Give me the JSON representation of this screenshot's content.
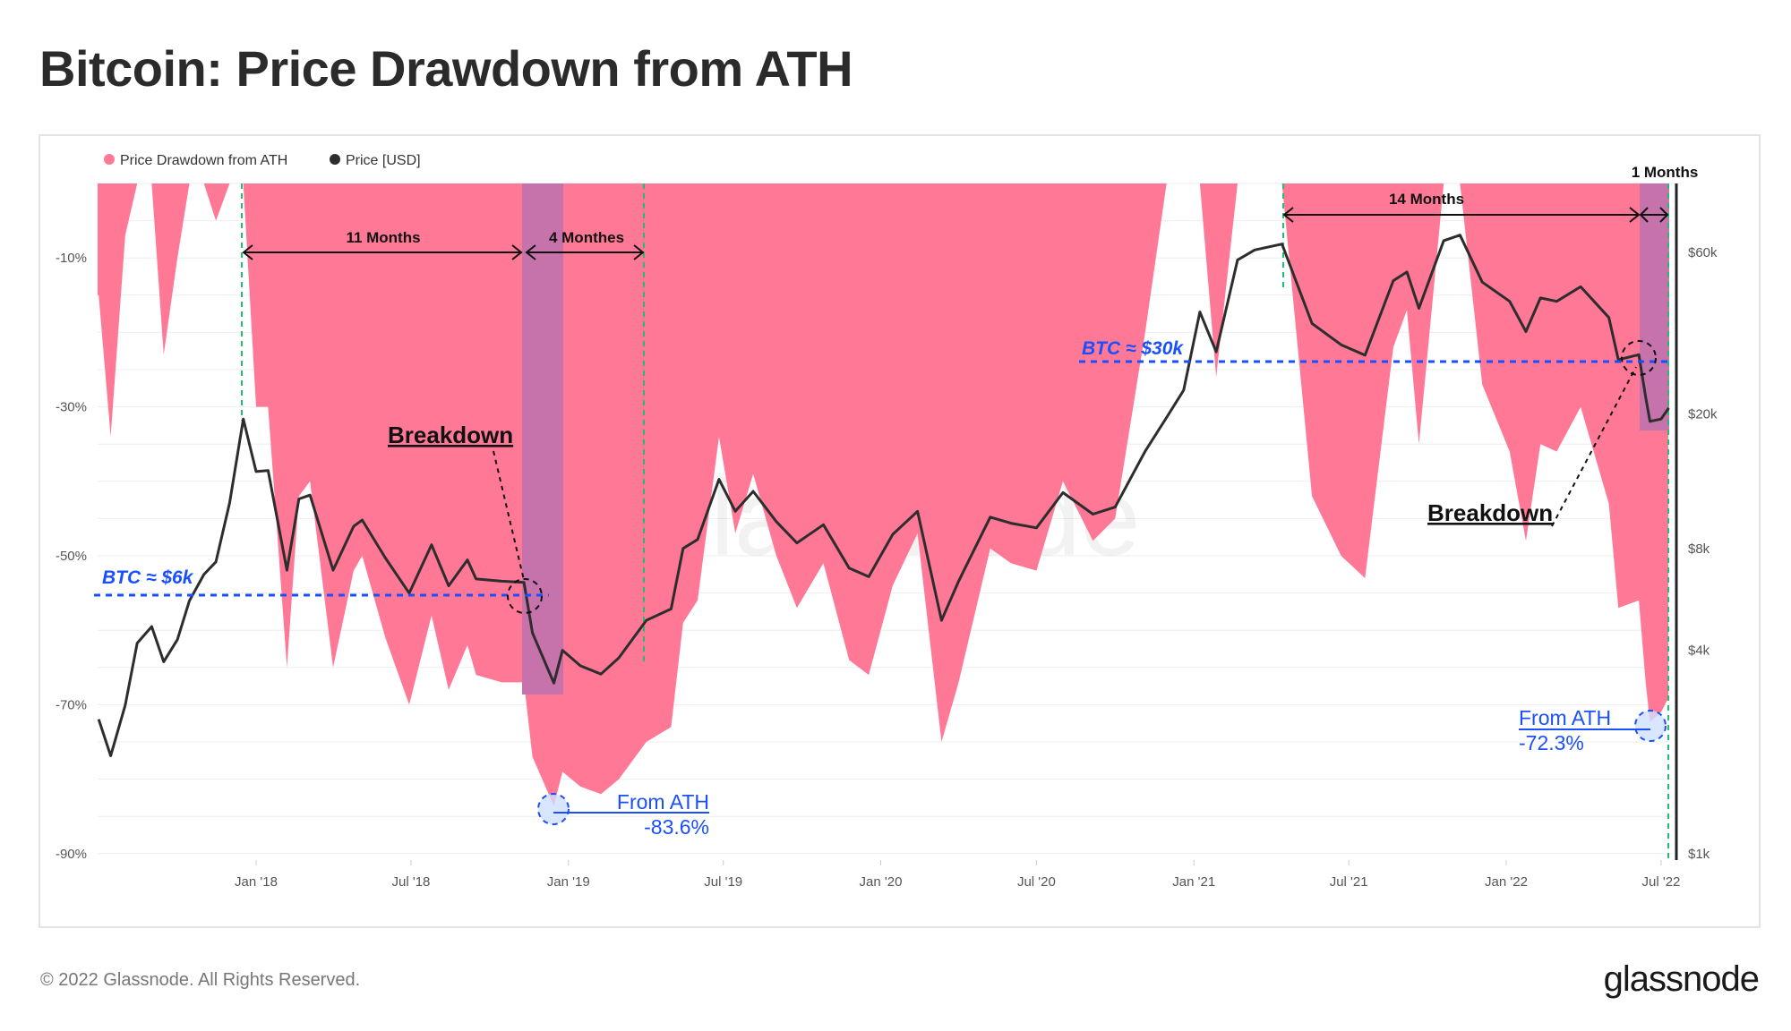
{
  "title": "Bitcoin: Price Drawdown from ATH",
  "footer": {
    "copyright": "© 2022 Glassnode. All Rights Reserved.",
    "logo": "glassnode",
    "watermark": "glassnode"
  },
  "colors": {
    "drawdown": "#ff7896",
    "price": "#2d2d2d",
    "highlight": "#c573aa",
    "annotation_blue": "#1a4fff",
    "marker_green": "#1fbf6f"
  },
  "chart_data": {
    "type": "area+line",
    "legend": [
      {
        "label": "Price Drawdown from ATH",
        "color": "#ff7896"
      },
      {
        "label": "Price [USD]",
        "color": "#2d2d2d"
      }
    ],
    "legend_position": "top-left",
    "grid": true,
    "x_ticks": [
      "Jan '18",
      "Jul '18",
      "Jan '19",
      "Jul '19",
      "Jan '20",
      "Jul '20",
      "Jan '21",
      "Jul '21",
      "Jan '22",
      "Jul '22"
    ],
    "x_tick_dates": [
      "2018-01-01",
      "2018-07-01",
      "2019-01-01",
      "2019-07-01",
      "2020-01-01",
      "2020-07-01",
      "2021-01-01",
      "2021-07-01",
      "2022-01-01",
      "2022-07-01"
    ],
    "xlim": [
      "2017-07-01",
      "2022-07-13"
    ],
    "y_left": {
      "ticks": [
        "-10%",
        "-30%",
        "-50%",
        "-70%",
        "-90%"
      ],
      "tick_values": [
        -10,
        -30,
        -50,
        -70,
        -90
      ],
      "range": [
        -90,
        0
      ]
    },
    "y_right": {
      "scale": "log",
      "ticks": [
        "$60k",
        "$20k",
        "$8k",
        "$4k",
        "$1k"
      ],
      "tick_values": [
        60000,
        20000,
        8000,
        4000,
        1000
      ]
    },
    "series": [
      {
        "name": "Price Drawdown from ATH",
        "unit": "%",
        "points": [
          [
            "2017-07-01",
            -15
          ],
          [
            "2017-07-15",
            -34
          ],
          [
            "2017-08-01",
            -7
          ],
          [
            "2017-08-15",
            0
          ],
          [
            "2017-09-01",
            0
          ],
          [
            "2017-09-15",
            -23
          ],
          [
            "2017-10-01",
            -10
          ],
          [
            "2017-10-15",
            0
          ],
          [
            "2017-11-01",
            0
          ],
          [
            "2017-11-15",
            -5
          ],
          [
            "2017-12-01",
            0
          ],
          [
            "2017-12-17",
            0
          ],
          [
            "2018-01-01",
            -30
          ],
          [
            "2018-01-15",
            -30
          ],
          [
            "2018-02-06",
            -65
          ],
          [
            "2018-02-20",
            -42
          ],
          [
            "2018-03-05",
            -40
          ],
          [
            "2018-04-01",
            -65
          ],
          [
            "2018-04-25",
            -52
          ],
          [
            "2018-05-05",
            -50
          ],
          [
            "2018-06-01",
            -61
          ],
          [
            "2018-06-29",
            -70
          ],
          [
            "2018-07-25",
            -58
          ],
          [
            "2018-08-14",
            -68
          ],
          [
            "2018-09-05",
            -62
          ],
          [
            "2018-09-15",
            -66
          ],
          [
            "2018-10-15",
            -67
          ],
          [
            "2018-11-10",
            -67
          ],
          [
            "2018-11-20",
            -77
          ],
          [
            "2018-12-15",
            -83.6
          ],
          [
            "2018-12-25",
            -79
          ],
          [
            "2019-01-15",
            -81
          ],
          [
            "2019-02-08",
            -82
          ],
          [
            "2019-03-01",
            -80
          ],
          [
            "2019-04-02",
            -75
          ],
          [
            "2019-05-01",
            -73
          ],
          [
            "2019-05-15",
            -59
          ],
          [
            "2019-06-01",
            -56
          ],
          [
            "2019-06-26",
            -34
          ],
          [
            "2019-07-15",
            -47
          ],
          [
            "2019-08-05",
            -39
          ],
          [
            "2019-09-01",
            -50
          ],
          [
            "2019-09-25",
            -57
          ],
          [
            "2019-10-26",
            -51
          ],
          [
            "2019-11-25",
            -64
          ],
          [
            "2019-12-18",
            -66
          ],
          [
            "2020-01-15",
            -54
          ],
          [
            "2020-02-13",
            -47
          ],
          [
            "2020-03-12",
            -75
          ],
          [
            "2020-04-01",
            -67
          ],
          [
            "2020-05-08",
            -49
          ],
          [
            "2020-06-01",
            -51
          ],
          [
            "2020-07-01",
            -52
          ],
          [
            "2020-08-01",
            -40
          ],
          [
            "2020-09-05",
            -48
          ],
          [
            "2020-10-01",
            -45
          ],
          [
            "2020-11-05",
            -20
          ],
          [
            "2020-11-30",
            0
          ],
          [
            "2020-12-20",
            0
          ],
          [
            "2021-01-08",
            0
          ],
          [
            "2021-01-27",
            -26
          ],
          [
            "2021-02-21",
            0
          ],
          [
            "2021-03-13",
            0
          ],
          [
            "2021-04-14",
            0
          ],
          [
            "2021-05-19",
            -42
          ],
          [
            "2021-06-22",
            -50
          ],
          [
            "2021-07-20",
            -53
          ],
          [
            "2021-08-22",
            -22
          ],
          [
            "2021-09-07",
            -17
          ],
          [
            "2021-09-21",
            -35
          ],
          [
            "2021-10-20",
            0
          ],
          [
            "2021-11-08",
            0
          ],
          [
            "2021-12-04",
            -27
          ],
          [
            "2022-01-05",
            -36
          ],
          [
            "2022-01-24",
            -48
          ],
          [
            "2022-02-10",
            -35
          ],
          [
            "2022-03-01",
            -36
          ],
          [
            "2022-03-29",
            -30
          ],
          [
            "2022-05-01",
            -43
          ],
          [
            "2022-05-12",
            -57
          ],
          [
            "2022-06-05",
            -56
          ],
          [
            "2022-06-13",
            -67
          ],
          [
            "2022-06-18",
            -72.3
          ],
          [
            "2022-07-01",
            -71
          ],
          [
            "2022-07-10",
            -69
          ]
        ]
      },
      {
        "name": "Price [USD]",
        "unit": "USD",
        "points": [
          [
            "2017-07-01",
            2500
          ],
          [
            "2017-07-15",
            1950
          ],
          [
            "2017-08-01",
            2750
          ],
          [
            "2017-08-15",
            4200
          ],
          [
            "2017-09-01",
            4700
          ],
          [
            "2017-09-15",
            3700
          ],
          [
            "2017-10-01",
            4300
          ],
          [
            "2017-10-15",
            5600
          ],
          [
            "2017-11-01",
            6700
          ],
          [
            "2017-11-15",
            7300
          ],
          [
            "2017-12-01",
            10900
          ],
          [
            "2017-12-17",
            19300
          ],
          [
            "2018-01-01",
            13500
          ],
          [
            "2018-01-15",
            13600
          ],
          [
            "2018-02-06",
            6900
          ],
          [
            "2018-02-20",
            11200
          ],
          [
            "2018-03-05",
            11500
          ],
          [
            "2018-04-01",
            6900
          ],
          [
            "2018-04-25",
            9300
          ],
          [
            "2018-05-05",
            9700
          ],
          [
            "2018-06-01",
            7500
          ],
          [
            "2018-06-29",
            5900
          ],
          [
            "2018-07-25",
            8200
          ],
          [
            "2018-08-14",
            6200
          ],
          [
            "2018-09-05",
            7400
          ],
          [
            "2018-09-15",
            6500
          ],
          [
            "2018-10-15",
            6400
          ],
          [
            "2018-11-10",
            6350
          ],
          [
            "2018-11-20",
            4500
          ],
          [
            "2018-12-15",
            3200
          ],
          [
            "2018-12-25",
            4000
          ],
          [
            "2019-01-15",
            3600
          ],
          [
            "2019-02-08",
            3400
          ],
          [
            "2019-03-01",
            3800
          ],
          [
            "2019-04-02",
            4900
          ],
          [
            "2019-05-01",
            5300
          ],
          [
            "2019-05-15",
            8000
          ],
          [
            "2019-06-01",
            8500
          ],
          [
            "2019-06-26",
            12800
          ],
          [
            "2019-07-15",
            10300
          ],
          [
            "2019-08-05",
            11800
          ],
          [
            "2019-09-01",
            9600
          ],
          [
            "2019-09-25",
            8300
          ],
          [
            "2019-10-26",
            9400
          ],
          [
            "2019-11-25",
            7000
          ],
          [
            "2019-12-18",
            6600
          ],
          [
            "2020-01-15",
            8800
          ],
          [
            "2020-02-13",
            10300
          ],
          [
            "2020-03-12",
            4900
          ],
          [
            "2020-04-01",
            6400
          ],
          [
            "2020-05-08",
            9900
          ],
          [
            "2020-06-01",
            9500
          ],
          [
            "2020-07-01",
            9200
          ],
          [
            "2020-08-01",
            11700
          ],
          [
            "2020-09-05",
            10100
          ],
          [
            "2020-10-01",
            10600
          ],
          [
            "2020-11-05",
            15500
          ],
          [
            "2020-11-30",
            19500
          ],
          [
            "2020-12-20",
            23500
          ],
          [
            "2021-01-08",
            40000
          ],
          [
            "2021-01-27",
            30500
          ],
          [
            "2021-02-21",
            57000
          ],
          [
            "2021-03-13",
            61000
          ],
          [
            "2021-04-14",
            63500
          ],
          [
            "2021-05-19",
            37000
          ],
          [
            "2021-06-22",
            32000
          ],
          [
            "2021-07-20",
            29800
          ],
          [
            "2021-08-22",
            49500
          ],
          [
            "2021-09-07",
            52500
          ],
          [
            "2021-09-21",
            41000
          ],
          [
            "2021-10-20",
            65000
          ],
          [
            "2021-11-08",
            67500
          ],
          [
            "2021-12-04",
            49000
          ],
          [
            "2022-01-05",
            43000
          ],
          [
            "2022-01-24",
            35000
          ],
          [
            "2022-02-10",
            44000
          ],
          [
            "2022-03-01",
            43000
          ],
          [
            "2022-03-29",
            47500
          ],
          [
            "2022-05-01",
            38500
          ],
          [
            "2022-05-12",
            28900
          ],
          [
            "2022-06-05",
            29900
          ],
          [
            "2022-06-13",
            22400
          ],
          [
            "2022-06-18",
            19000
          ],
          [
            "2022-07-01",
            19300
          ],
          [
            "2022-07-10",
            20800
          ]
        ]
      }
    ],
    "annotations": {
      "spans": [
        {
          "label": "11 Months"
        },
        {
          "label": "4 Monthes"
        },
        {
          "label": "14 Months"
        },
        {
          "label": "1 Months"
        }
      ],
      "levels": [
        {
          "label": "BTC ≈ $6k",
          "value": 6000
        },
        {
          "label": "BTC ≈ $30k",
          "value": 30000
        }
      ],
      "breakdowns": [
        {
          "label": "Breakdown"
        },
        {
          "label": "Breakdown"
        }
      ],
      "lows": [
        {
          "title": "From ATH",
          "value": "-83.6%"
        },
        {
          "title": "From ATH",
          "value": "-72.3%"
        }
      ]
    }
  }
}
